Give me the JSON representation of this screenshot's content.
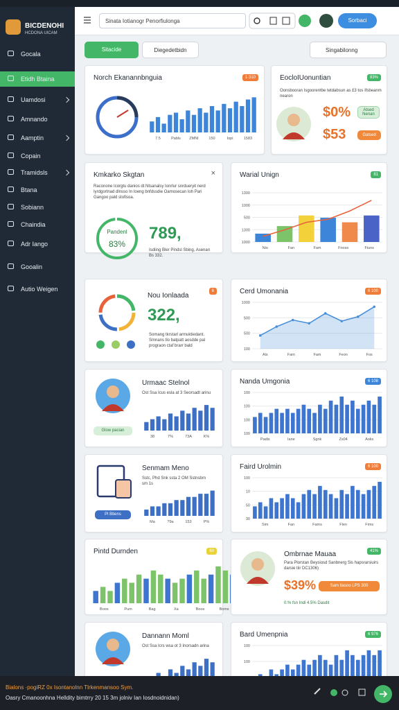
{
  "brand": {
    "name": "BICDENOHI",
    "sub": "HCDONA UICAM"
  },
  "sidebar": [
    "Gocala",
    "Etidh Btaina",
    "Uamdosi",
    "Amnando",
    "Aamptin",
    "Copain",
    "Tramidsls",
    "Btana",
    "Sobiann",
    "Chaindia",
    "Adr Iango",
    "Gooalin",
    "Autio Weigen"
  ],
  "topbar": {
    "search": "Sinata Iotianogr Penorfiulonga",
    "button": "Sorbaci"
  },
  "tabs": {
    "active": "Sitacide",
    "other": "Diegedetbidn",
    "dropdown": "Singabilonng"
  },
  "cards": [
    {
      "type": "gauge-bars",
      "title": "Norch Ekanannbnguia",
      "badge": "1·310",
      "badge_color": "#f07c3a",
      "chart": {
        "kind": "bar",
        "values": [
          5,
          7,
          4,
          8,
          9,
          6,
          10,
          8,
          11,
          9,
          12,
          10,
          13,
          11,
          14,
          12,
          15,
          16
        ],
        "ylim": [
          0,
          18
        ],
        "color": "#3d85d8",
        "xlabels": [
          "7.5",
          "Pabls",
          "ZMNI",
          "150",
          "Iopi",
          "1583"
        ]
      }
    },
    {
      "type": "promo",
      "title": "EocloIUonuntian",
      "badge": "83%",
      "badge_color": "#43b767",
      "text": "Oonsbooran Isgoorentbe tetdabsun as £3 tos Ifsbeanm nearon",
      "big": "$0%",
      "big2": "$53",
      "tag": "Atsed Nenan",
      "button": "Gatsed"
    },
    {
      "type": "stat-ring",
      "title": "Kmkarko Skgtan",
      "close": "×",
      "text": "Raconone Icorgtu danios dt Ntsanalsy Ionrlur snrdueryit nerd Iyrdgortnad dlnsso In Ioeng bnfdssdie Oamosecan Ioh Pari Gangoo pald stofisoa.",
      "ring_label": "Pandenl",
      "ring_value": "83%",
      "big": "789,",
      "note": "Isdiing Bler Pindsl Sbing, Asenan Bs 332."
    },
    {
      "type": "combo",
      "title": "Warial Unign",
      "badge": "81",
      "badge_color": "#43b767",
      "chart": {
        "kind": "bar",
        "values": [
          220,
          420,
          700,
          640,
          520,
          700
        ],
        "ylim": [
          0,
          1300
        ],
        "colors": [
          "#3d85d8",
          "#7cc36a",
          "#f2d13a",
          "#3d85d8",
          "#f08a4b",
          "#4a63c7"
        ],
        "line": [
          150,
          320,
          520,
          600,
          820,
          1100
        ],
        "line_color": "#e8623a",
        "ylabels": [
          "1300",
          "1000",
          "500",
          "1300",
          "1000"
        ],
        "xlabels": [
          "Nio",
          "Fan",
          "Fam",
          "Fnoss",
          "Fiuns"
        ]
      }
    },
    {
      "type": "ring-stat",
      "title": "Nou Ionlaada",
      "badge": "6",
      "badge_color": "#f07c3a",
      "big": "322,",
      "text": "Somang tkrstarl armuktiedant. Smnans tlo batpatt aosdde pal prograon ctaf brarr bald"
    },
    {
      "type": "line",
      "title": "Cerd Umonania",
      "badge": "6 100",
      "badge_color": "#f07c3a",
      "chart": {
        "kind": "area",
        "values": [
          120,
          200,
          260,
          230,
          320,
          250,
          290,
          380
        ],
        "ylim": [
          0,
          420
        ],
        "color": "#4a90d9",
        "ylabels": [
          "1000",
          "500",
          "500",
          "100"
        ],
        "xlabels": [
          "Als",
          "Fam",
          "Fam",
          "Feon",
          "Fos"
        ]
      }
    },
    {
      "type": "avatar-bars",
      "title": "Urmaac Stelnol",
      "text": "Ost Ssa Icus esla at 3 Seorsadt arinu",
      "button": "Glow pacian",
      "chart": {
        "kind": "bar",
        "values": [
          3,
          4,
          5,
          4,
          6,
          5,
          7,
          6,
          8,
          7,
          9,
          8
        ],
        "ylim": [
          0,
          10
        ],
        "color": "#3d6fc4",
        "xlabels": [
          "38",
          "7%",
          "73A",
          "K%"
        ]
      }
    },
    {
      "type": "bars",
      "title": "Nanda Umgonia",
      "badge": "6 108",
      "badge_color": "#3d85d8",
      "chart": {
        "kind": "bar",
        "values": [
          4,
          5,
          4,
          5,
          6,
          5,
          6,
          5,
          6,
          7,
          6,
          5,
          7,
          6,
          8,
          7,
          9,
          7,
          8,
          6,
          7,
          8,
          7,
          9
        ],
        "ylim": [
          0,
          10
        ],
        "color": "#3d75cf",
        "ylabels": [
          "100",
          "100",
          "100",
          "100"
        ],
        "xlabels": [
          "Padis",
          "Iane",
          "Sgnk",
          "Zs04",
          "Aoks"
        ]
      }
    },
    {
      "type": "device-bars",
      "title": "Senmam Meno",
      "text": "Sstc, Phd Snk ssta 2 OM Sstnsbrn sm 1s",
      "button": "Pl Btiens",
      "chart": {
        "kind": "bar",
        "values": [
          2,
          3,
          3,
          4,
          4,
          5,
          5,
          6,
          6,
          7,
          7,
          8
        ],
        "ylim": [
          0,
          9
        ],
        "color": "#3d6fc4",
        "xlabels": [
          "Ma",
          "?9a",
          "153",
          "P%"
        ]
      }
    },
    {
      "type": "bars",
      "title": "Faird Urolmin",
      "badge": "6 100",
      "badge_color": "#f07c3a",
      "chart": {
        "kind": "bar",
        "values": [
          3,
          4,
          3,
          5,
          4,
          5,
          6,
          5,
          4,
          6,
          7,
          6,
          8,
          7,
          6,
          5,
          7,
          6,
          8,
          7,
          6,
          7,
          8,
          9
        ],
        "ylim": [
          0,
          10
        ],
        "color": "#3d75cf",
        "ylabels": [
          "100",
          "10",
          "50",
          "30"
        ],
        "xlabels": [
          "Sim",
          "Fan",
          "Fams",
          "Flen",
          "Fims"
        ]
      }
    },
    {
      "type": "bars",
      "title": "Pintd Durnden",
      "badge": "60",
      "badge_color": "#e9d33a",
      "chart": {
        "kind": "bar",
        "values": [
          3,
          4,
          3,
          5,
          6,
          5,
          7,
          6,
          8,
          7,
          6,
          5,
          6,
          7,
          8,
          6,
          7,
          9,
          8,
          7
        ],
        "ylim": [
          0,
          10
        ],
        "colors": [
          "#3d75cf",
          "#7cc36a",
          "#7cc36a",
          "#3d75cf",
          "#7cc36a",
          "#7cc36a",
          "#7cc36a",
          "#3d75cf",
          "#7cc36a",
          "#7cc36a",
          "#3d75cf",
          "#7cc36a",
          "#7cc36a",
          "#3d75cf",
          "#7cc36a",
          "#7cc36a",
          "#3d75cf",
          "#7cc36a",
          "#7cc36a",
          "#3d75cf"
        ],
        "xlabels": [
          "Boos",
          "Pum",
          "Bag",
          "Xa",
          "Boos",
          "Boms"
        ]
      }
    },
    {
      "type": "price",
      "title": "Ombrnae Mauaa",
      "badge": "41%",
      "badge_color": "#43b767",
      "text": "Para Plorstan Beysiosd Sanbnerg Sis hapsrarsiuirs darsie tiir DC1306)",
      "big": "$39%",
      "button": "Sam tlasoo LPS 300",
      "note": "0.% fsn Indi 4.5% Dasdit"
    },
    {
      "type": "avatar-bars",
      "title": "Dannann Moml",
      "text": "Ost Ssa Icrs wsa ot 3 Inorsadn arina",
      "chart": {
        "kind": "bar",
        "values": [
          3,
          4,
          5,
          4,
          6,
          5,
          7,
          6,
          8,
          7,
          9,
          8
        ],
        "ylim": [
          0,
          10
        ],
        "color": "#3d6fc4"
      }
    },
    {
      "type": "bars",
      "title": "Bard Umenpnia",
      "badge": "6 976",
      "badge_color": "#43b767",
      "chart": {
        "kind": "bar",
        "values": [
          3,
          4,
          3,
          5,
          4,
          5,
          6,
          5,
          6,
          7,
          6,
          7,
          8,
          7,
          6,
          8,
          7,
          9,
          8,
          7,
          8,
          9,
          8,
          9
        ],
        "ylim": [
          0,
          10
        ],
        "color": "#3d75cf",
        "ylabels": [
          "100",
          "100",
          "100",
          "50"
        ]
      }
    }
  ],
  "bottom": {
    "line1": "Bialons ·pogiRZ 0x Isontanolnn Tlrkenmansoo Sym.",
    "line2": "Oasry Cmanoonhna Helldity bimtrry 20 15 3m jolniv Ian Iosdnoidnidan)"
  }
}
